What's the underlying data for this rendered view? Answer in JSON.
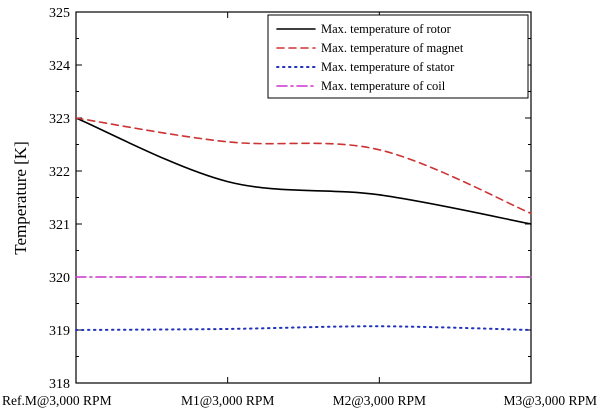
{
  "chart_data": {
    "type": "line",
    "title": "",
    "xlabel": "",
    "ylabel": "Temperature [K]",
    "categories": [
      "Ref.M@3,000 RPM",
      "M1@3,000 RPM",
      "M2@3,000 RPM",
      "M3@3,000 RPM"
    ],
    "ylim": [
      318,
      325
    ],
    "yticks": [
      318,
      319,
      320,
      321,
      322,
      323,
      324,
      325
    ],
    "grid": false,
    "legend_position": "top-right",
    "series": [
      {
        "name": "Max. temperature of rotor",
        "color": "#000000",
        "style": "solid",
        "values": [
          323.0,
          321.8,
          321.55,
          321.0
        ]
      },
      {
        "name": "Max. temperature of magnet",
        "color": "#cc3333",
        "style": "dashed",
        "values": [
          323.0,
          322.55,
          322.4,
          321.2
        ]
      },
      {
        "name": "Max. temperature of stator",
        "color": "#2233bb",
        "style": "dotted",
        "values": [
          319.0,
          319.02,
          319.07,
          319.0
        ]
      },
      {
        "name": "Max. temperature of coil",
        "color": "#cc33cc",
        "style": "dashdot",
        "values": [
          320.0,
          320.0,
          320.0,
          320.0
        ]
      }
    ]
  }
}
